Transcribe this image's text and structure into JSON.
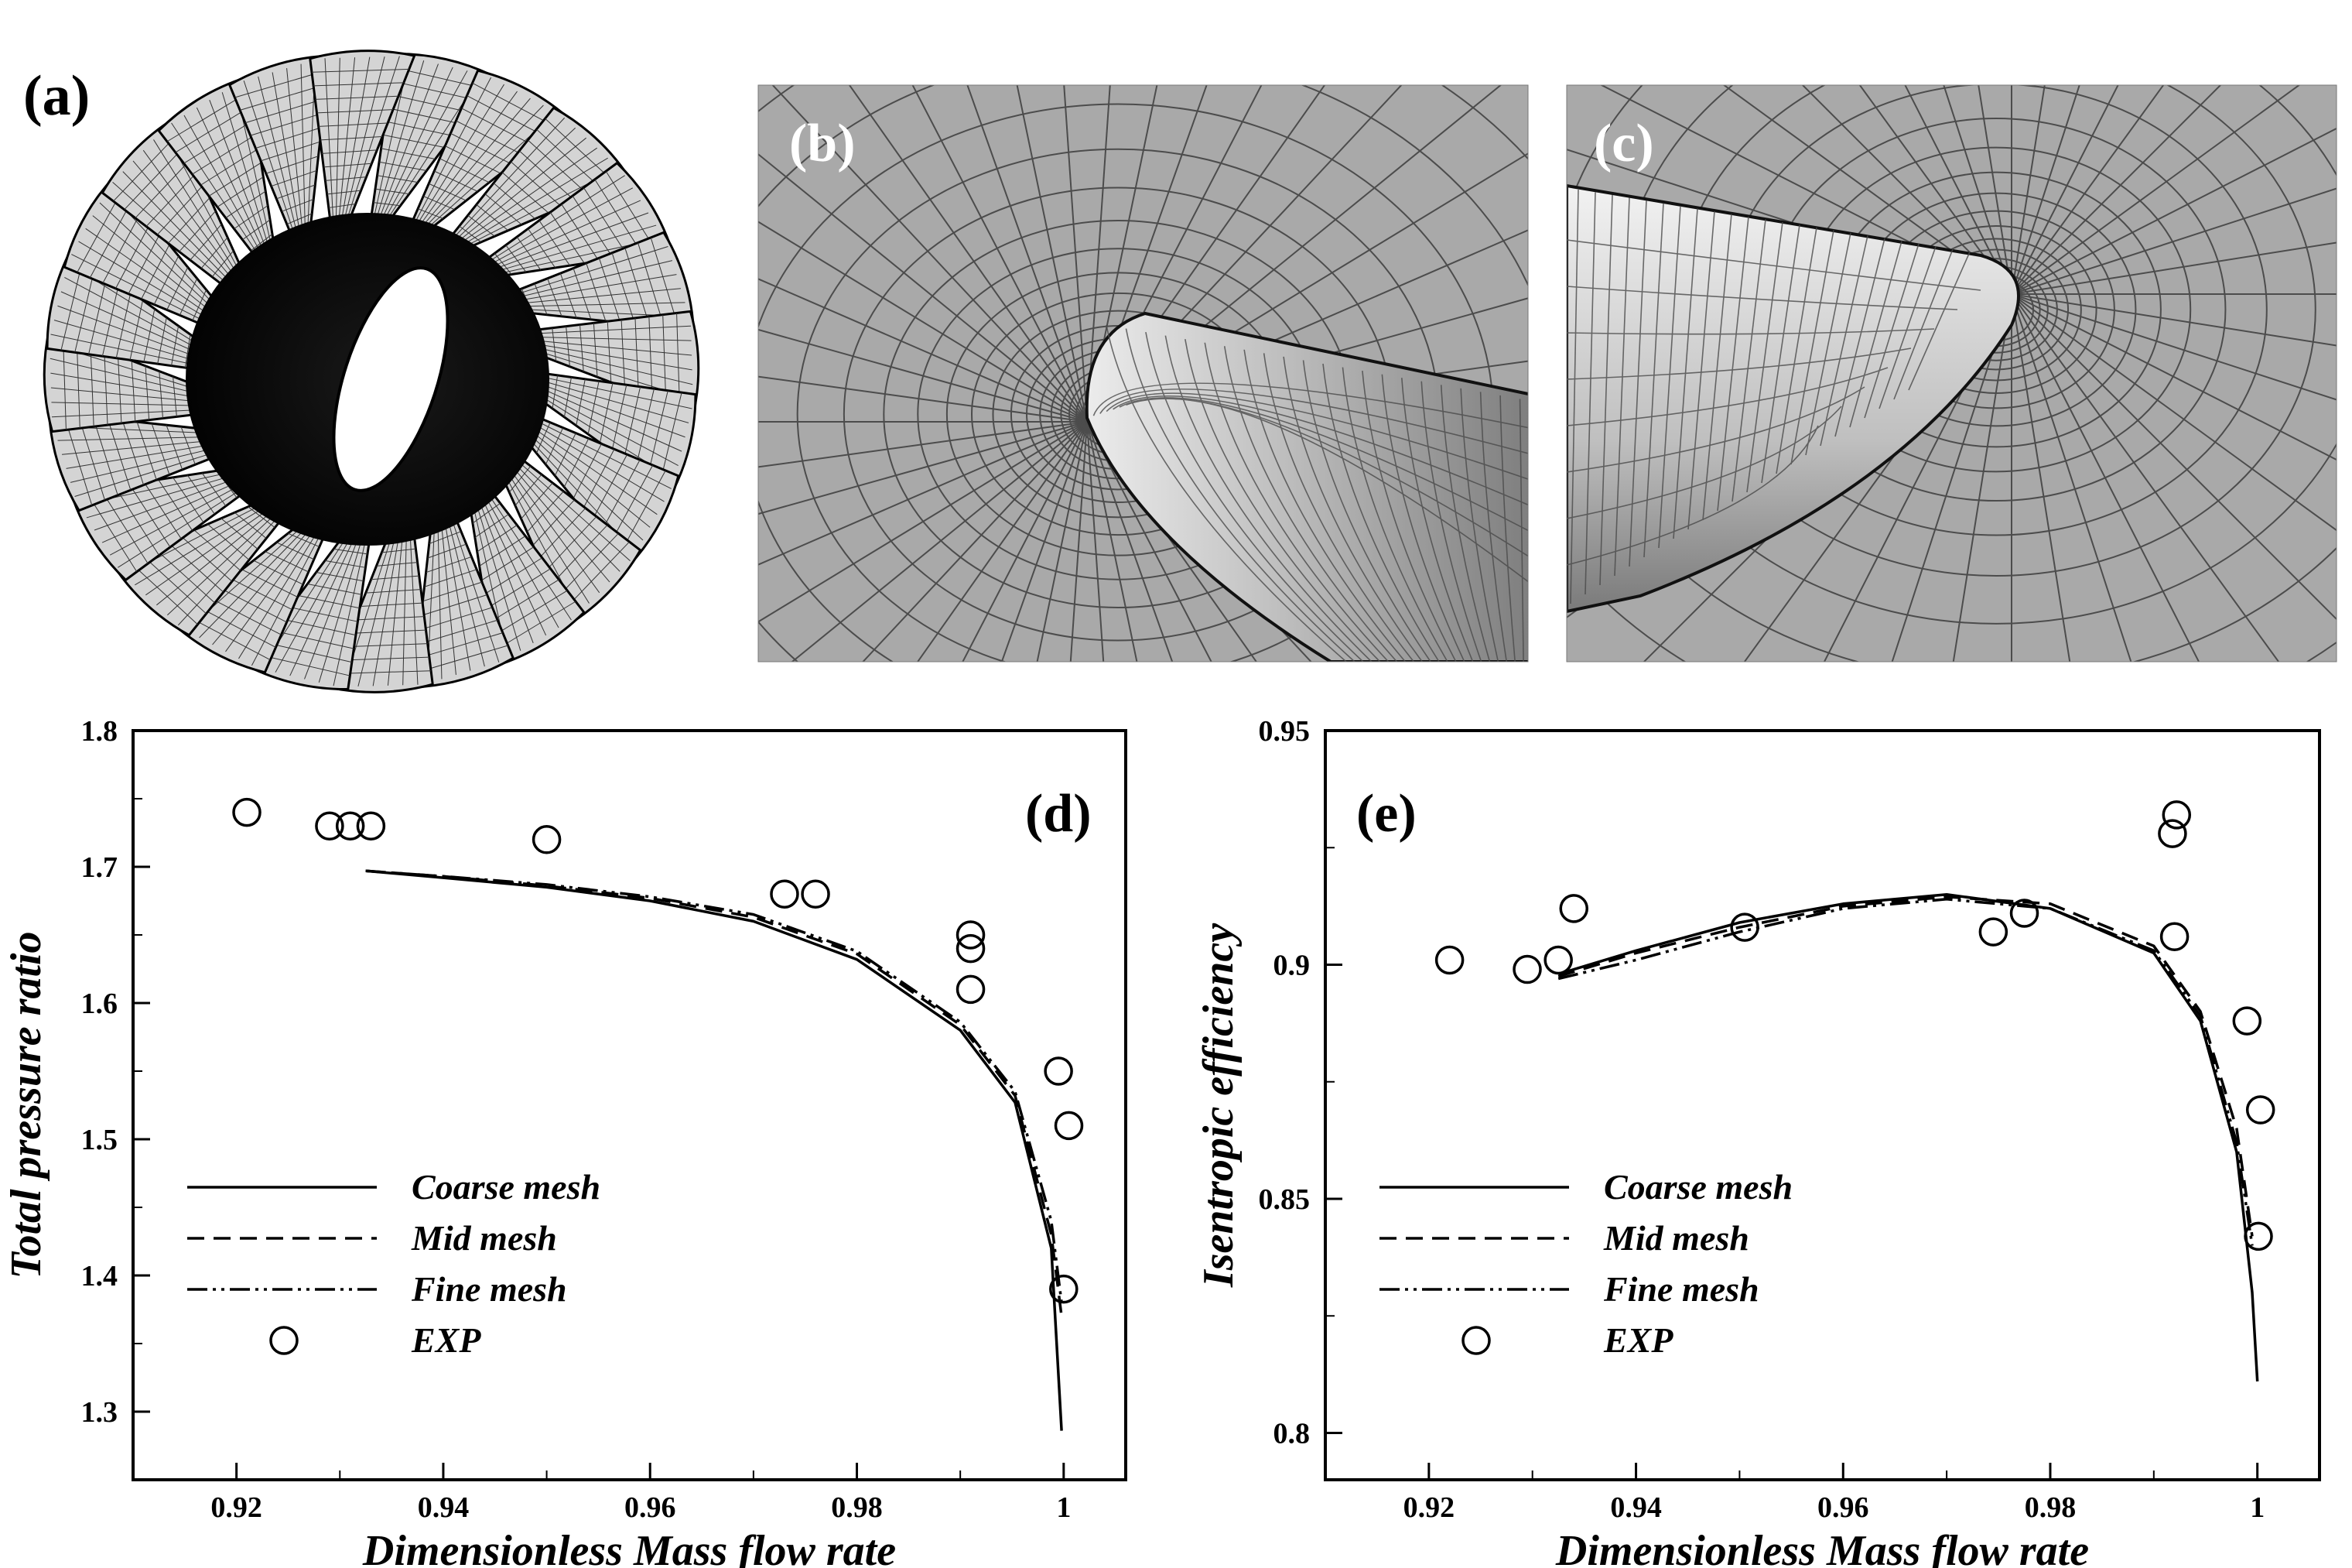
{
  "panels": {
    "a": {
      "label": "(a)"
    },
    "b": {
      "label": "(b)"
    },
    "c": {
      "label": "(c)"
    }
  },
  "colors": {
    "mesh_background": "#a9a9a9",
    "mesh_line": "#3a3a3a",
    "blade_fill": "#d0d0d0",
    "ink": "#000000"
  },
  "chart_data": [
    {
      "type": "line",
      "panel_label": "(d)",
      "xlabel": "Dimensionless Mass flow rate",
      "ylabel": "Total pressure ratio",
      "xlim": [
        0.91,
        1.006
      ],
      "ylim": [
        1.25,
        1.8
      ],
      "xticks": [
        0.92,
        0.94,
        0.96,
        0.98,
        1.0
      ],
      "xtick_labels": [
        "0.92",
        "0.94",
        "0.96",
        "0.98",
        "1"
      ],
      "yticks": [
        1.3,
        1.4,
        1.5,
        1.6,
        1.7,
        1.8
      ],
      "ytick_labels": [
        "1.3",
        "1.4",
        "1.5",
        "1.6",
        "1.7",
        "1.8"
      ],
      "legend_position": "bottom-left",
      "series": [
        {
          "name": "Coarse mesh",
          "style": "solid",
          "x": [
            0.9325,
            0.94,
            0.95,
            0.96,
            0.97,
            0.98,
            0.99,
            0.9953,
            0.9988,
            0.9998
          ],
          "y": [
            1.697,
            1.692,
            1.685,
            1.675,
            1.66,
            1.632,
            1.58,
            1.527,
            1.42,
            1.286
          ]
        },
        {
          "name": "Mid mesh",
          "style": "dashed",
          "x": [
            0.9325,
            0.94,
            0.95,
            0.96,
            0.97,
            0.98,
            0.99,
            0.9953,
            0.9988,
            0.9998
          ],
          "y": [
            1.697,
            1.693,
            1.686,
            1.677,
            1.663,
            1.636,
            1.584,
            1.532,
            1.43,
            1.37
          ]
        },
        {
          "name": "Fine mesh",
          "style": "dashdotdot",
          "x": [
            0.9325,
            0.94,
            0.95,
            0.96,
            0.97,
            0.98,
            0.99,
            0.9953,
            0.9988,
            0.9998
          ],
          "y": [
            1.697,
            1.693,
            1.687,
            1.678,
            1.665,
            1.638,
            1.586,
            1.535,
            1.44,
            1.38
          ]
        },
        {
          "name": "EXP",
          "style": "marker",
          "x": [
            0.921,
            0.929,
            0.931,
            0.933,
            0.95,
            0.973,
            0.976,
            0.991,
            0.991,
            0.991,
            0.9995,
            1.0005,
            1.0
          ],
          "y": [
            1.74,
            1.73,
            1.73,
            1.73,
            1.72,
            1.68,
            1.68,
            1.65,
            1.64,
            1.61,
            1.55,
            1.51,
            1.39
          ]
        }
      ]
    },
    {
      "type": "line",
      "panel_label": "(e)",
      "xlabel": "Dimensionless Mass flow rate",
      "ylabel": "Isentropic efficiency",
      "xlim": [
        0.91,
        1.006
      ],
      "ylim": [
        0.79,
        0.95
      ],
      "xticks": [
        0.92,
        0.94,
        0.96,
        0.98,
        1.0
      ],
      "xtick_labels": [
        "0.92",
        "0.94",
        "0.96",
        "0.98",
        "1"
      ],
      "yticks": [
        0.8,
        0.85,
        0.9,
        0.95
      ],
      "ytick_labels": [
        "0.8",
        "0.85",
        "0.9",
        "0.95"
      ],
      "legend_position": "bottom-left",
      "series": [
        {
          "name": "Coarse mesh",
          "style": "solid",
          "x": [
            0.9325,
            0.94,
            0.95,
            0.96,
            0.97,
            0.98,
            0.99,
            0.9945,
            0.998,
            0.9995,
            1.0
          ],
          "y": [
            0.898,
            0.903,
            0.909,
            0.913,
            0.915,
            0.912,
            0.9025,
            0.888,
            0.86,
            0.83,
            0.811
          ]
        },
        {
          "name": "Mid mesh",
          "style": "dashed",
          "x": [
            0.9325,
            0.94,
            0.95,
            0.96,
            0.97,
            0.98,
            0.99,
            0.9945,
            0.998,
            0.9995
          ],
          "y": [
            0.8975,
            0.9025,
            0.908,
            0.9125,
            0.9145,
            0.913,
            0.904,
            0.89,
            0.865,
            0.842
          ]
        },
        {
          "name": "Fine mesh",
          "style": "dashdotdot",
          "x": [
            0.9325,
            0.94,
            0.95,
            0.96,
            0.97,
            0.98,
            0.99,
            0.9945,
            0.998,
            0.9995
          ],
          "y": [
            0.897,
            0.901,
            0.907,
            0.912,
            0.914,
            0.912,
            0.903,
            0.889,
            0.862,
            0.84
          ]
        },
        {
          "name": "EXP",
          "style": "marker",
          "x": [
            0.922,
            0.9295,
            0.9325,
            0.934,
            0.9505,
            0.9745,
            0.9775,
            0.9918,
            0.9922,
            0.992,
            0.999,
            1.0003,
            1.0001
          ],
          "y": [
            0.901,
            0.899,
            0.901,
            0.912,
            0.908,
            0.907,
            0.911,
            0.928,
            0.932,
            0.906,
            0.888,
            0.869,
            0.842
          ]
        }
      ]
    }
  ]
}
